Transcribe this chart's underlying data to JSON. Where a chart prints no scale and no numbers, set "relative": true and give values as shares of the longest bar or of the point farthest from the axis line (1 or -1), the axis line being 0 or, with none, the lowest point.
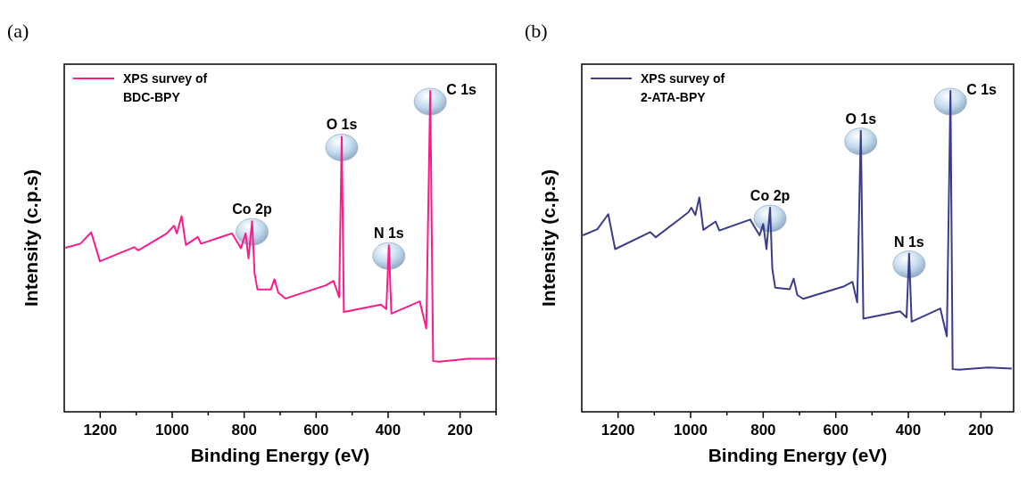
{
  "chart_data": [
    {
      "type": "line",
      "title": "(a)",
      "xlabel": "Binding Energy (eV)",
      "ylabel": "Intensity (c.p.s)",
      "relative": true,
      "legend": "top left",
      "xlim": [
        1300,
        100
      ],
      "xticks": [
        1200,
        1000,
        800,
        600,
        400,
        200,
        {
          "value": 1100,
          "label": null
        },
        {
          "value": 900,
          "label": null
        },
        {
          "value": 700,
          "label": null
        },
        {
          "value": 500,
          "label": null
        },
        {
          "value": 300,
          "label": null
        },
        {
          "value": 100,
          "label": null
        }
      ],
      "x": [
        1297,
        1255,
        1225,
        1201,
        1106,
        1094,
        1015,
        995,
        987,
        974,
        962,
        929,
        920,
        834,
        809,
        796,
        788,
        778,
        771,
        763,
        726,
        716,
        705,
        685,
        573,
        552,
        536,
        529,
        523,
        420,
        405,
        398,
        391,
        312,
        294,
        283,
        275,
        259,
        180,
        101
      ],
      "series": [
        {
          "name": "XPS survey of\nBDC-BPY",
          "color": "#ff1a8c",
          "values": [
            0.511,
            0.524,
            0.559,
            0.469,
            0.513,
            0.503,
            0.556,
            0.58,
            0.556,
            0.61,
            0.52,
            0.545,
            0.524,
            0.556,
            0.51,
            0.556,
            0.478,
            0.594,
            0.431,
            0.381,
            0.381,
            0.413,
            0.371,
            0.353,
            0.394,
            0.408,
            0.357,
            0.857,
            0.311,
            0.334,
            0.32,
            0.519,
            0.306,
            0.344,
            0.26,
            1,
            0.158,
            0.156,
            0.165,
            0.165
          ]
        }
      ],
      "annotations": [
        {
          "text": "Co 2p",
          "x": 778,
          "y": 0.594
        },
        {
          "text": "O 1s",
          "x": 529,
          "y": 0.857
        },
        {
          "text": "N 1s",
          "x": 398,
          "y": 0.519
        },
        {
          "text": "C 1s",
          "x": 283,
          "y": 1
        }
      ]
    },
    {
      "type": "line",
      "title": "(b)",
      "xlabel": "Binding Energy (eV)",
      "ylabel": "Intensity (c.p.s)",
      "relative": true,
      "legend": "top left",
      "xlim": [
        1300,
        110
      ],
      "xticks": [
        1200,
        1000,
        800,
        600,
        400,
        200,
        {
          "value": 1100,
          "label": null
        },
        {
          "value": 900,
          "label": null
        },
        {
          "value": 700,
          "label": null
        },
        {
          "value": 500,
          "label": null
        },
        {
          "value": 300,
          "label": null
        }
      ],
      "x": [
        1297,
        1257,
        1227,
        1208,
        1111,
        1096,
        1006,
        998,
        987,
        976,
        965,
        931,
        921,
        836,
        810,
        800,
        791,
        781,
        775,
        767,
        727,
        716,
        706,
        690,
        577,
        554,
        541,
        531,
        524,
        423,
        405,
        398,
        391,
        312,
        294,
        284,
        278,
        261,
        180,
        115
      ],
      "series": [
        {
          "name": "XPS survey of\n2-ATA-BPY",
          "color": "#3c3c8c",
          "values": [
            0.55,
            0.569,
            0.616,
            0.507,
            0.56,
            0.544,
            0.622,
            0.636,
            0.613,
            0.668,
            0.567,
            0.593,
            0.565,
            0.599,
            0.55,
            0.585,
            0.507,
            0.636,
            0.447,
            0.387,
            0.382,
            0.415,
            0.364,
            0.352,
            0.391,
            0.405,
            0.341,
            0.876,
            0.29,
            0.313,
            0.294,
            0.493,
            0.281,
            0.322,
            0.235,
            1,
            0.133,
            0.131,
            0.138,
            0.135
          ]
        }
      ],
      "annotations": [
        {
          "text": "Co 2p",
          "x": 781,
          "y": 0.636
        },
        {
          "text": "O 1s",
          "x": 531,
          "y": 0.876
        },
        {
          "text": "N 1s",
          "x": 398,
          "y": 0.493
        },
        {
          "text": "C 1s",
          "x": 284,
          "y": 1
        }
      ]
    }
  ]
}
